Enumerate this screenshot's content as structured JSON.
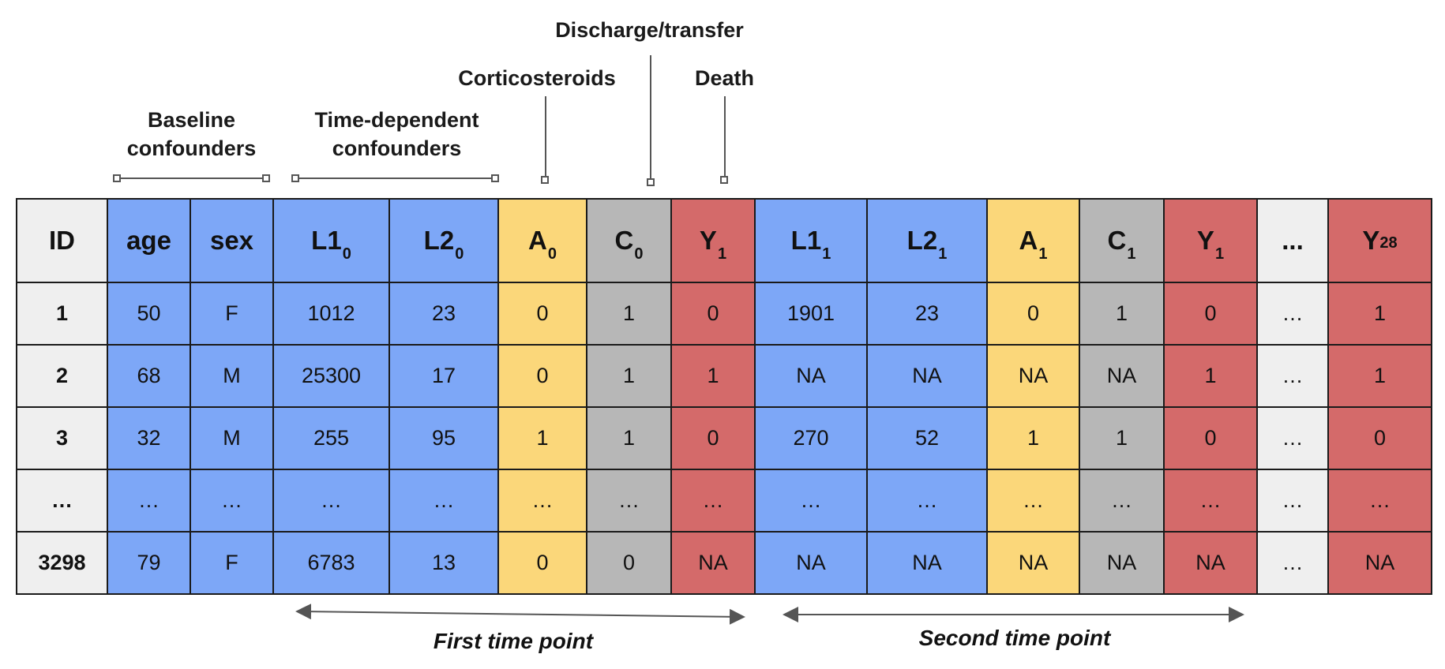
{
  "annotations": {
    "baseline": [
      "Baseline",
      "confounders"
    ],
    "timedep": [
      "Time-dependent",
      "confounders"
    ],
    "corticosteroids": "Corticosteroids",
    "discharge": "Discharge/transfer",
    "death": "Death"
  },
  "columns": [
    {
      "main": "ID",
      "sub": "",
      "color": "g"
    },
    {
      "main": "age",
      "sub": "",
      "color": "b"
    },
    {
      "main": "sex",
      "sub": "",
      "color": "b"
    },
    {
      "main": "L1",
      "sub": "0",
      "color": "b"
    },
    {
      "main": "L2",
      "sub": "0",
      "color": "b"
    },
    {
      "main": "A",
      "sub": "0",
      "color": "y"
    },
    {
      "main": "C",
      "sub": "0",
      "color": "s"
    },
    {
      "main": "Y",
      "sub": "1",
      "color": "r"
    },
    {
      "main": "L1",
      "sub": "1",
      "color": "b"
    },
    {
      "main": "L2",
      "sub": "1",
      "color": "b"
    },
    {
      "main": "A",
      "sub": "1",
      "color": "y"
    },
    {
      "main": "C",
      "sub": "1",
      "color": "s"
    },
    {
      "main": "Y",
      "sub": "1",
      "color": "r"
    },
    {
      "main": "...",
      "sub": "",
      "color": "g"
    },
    {
      "main": "Y",
      "sub": "28",
      "color": "r"
    }
  ],
  "rows": [
    [
      "1",
      "50",
      "F",
      "1012",
      "23",
      "0",
      "1",
      "0",
      "1901",
      "23",
      "0",
      "1",
      "0",
      "…",
      "1"
    ],
    [
      "2",
      "68",
      "M",
      "25300",
      "17",
      "0",
      "1",
      "1",
      "NA",
      "NA",
      "NA",
      "NA",
      "1",
      "…",
      "1"
    ],
    [
      "3",
      "32",
      "M",
      "255",
      "95",
      "1",
      "1",
      "0",
      "270",
      "52",
      "1",
      "1",
      "0",
      "…",
      "0"
    ],
    [
      "…",
      "…",
      "…",
      "…",
      "…",
      "…",
      "…",
      "…",
      "…",
      "…",
      "…",
      "…",
      "…",
      "…",
      "…"
    ],
    [
      "3298",
      "79",
      "F",
      "6783",
      "13",
      "0",
      "0",
      "NA",
      "NA",
      "NA",
      "NA",
      "NA",
      "NA",
      "…",
      "NA"
    ]
  ],
  "time_points": {
    "first": "First time point",
    "second": "Second time point"
  }
}
